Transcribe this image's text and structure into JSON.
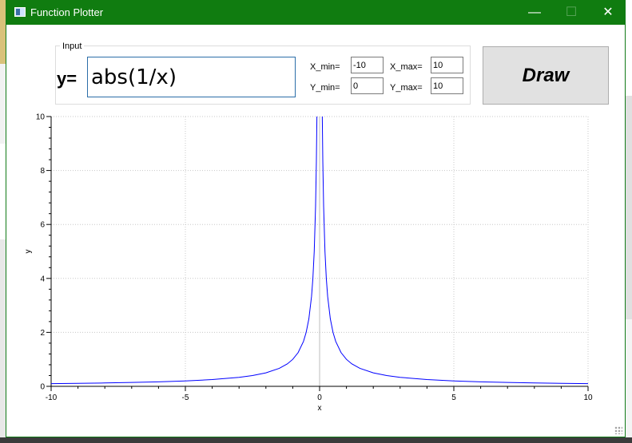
{
  "window": {
    "title": "Function Plotter",
    "controls": {
      "minimize": "—",
      "maximize": "☐",
      "close": "✕"
    }
  },
  "input_group": {
    "title": "Input",
    "y_label": "y=",
    "function": "abs(1/x)",
    "x_min_label": "X_min=",
    "x_min": "-10",
    "x_max_label": "X_max=",
    "x_max": "10",
    "y_min_label": "Y_min=",
    "y_min": "0",
    "y_max_label": "Y_max=",
    "y_max": "10"
  },
  "draw_button": "Draw",
  "chart_data": {
    "type": "line",
    "function": "abs(1/x)",
    "xlabel": "x",
    "ylabel": "y",
    "xlim": [
      -10,
      10
    ],
    "ylim": [
      0,
      10
    ],
    "x_ticks": [
      -10,
      -5,
      0,
      5,
      10
    ],
    "y_ticks": [
      0,
      2,
      4,
      6,
      8,
      10
    ],
    "grid": true,
    "line_color": "#0000ff",
    "series": [
      {
        "x": [
          -10,
          -9,
          -8,
          -7,
          -6,
          -5,
          -4,
          -3,
          -2.5,
          -2,
          -1.5,
          -1.2,
          -1,
          -0.8,
          -0.6,
          -0.5,
          -0.4,
          -0.3,
          -0.25,
          -0.2,
          -0.15,
          -0.12,
          -0.1
        ],
        "y": [
          0.1,
          0.111,
          0.125,
          0.143,
          0.167,
          0.2,
          0.25,
          0.333,
          0.4,
          0.5,
          0.667,
          0.833,
          1,
          1.25,
          1.667,
          2,
          2.5,
          3.333,
          4,
          5,
          6.667,
          8.333,
          10
        ]
      },
      {
        "x": [
          0.1,
          0.12,
          0.15,
          0.2,
          0.25,
          0.3,
          0.4,
          0.5,
          0.6,
          0.8,
          1,
          1.2,
          1.5,
          2,
          2.5,
          3,
          4,
          5,
          6,
          7,
          8,
          9,
          10
        ],
        "y": [
          10,
          8.333,
          6.667,
          5,
          4,
          3.333,
          2.5,
          2,
          1.667,
          1.25,
          1,
          0.833,
          0.667,
          0.5,
          0.4,
          0.333,
          0.25,
          0.2,
          0.167,
          0.143,
          0.125,
          0.111,
          0.1
        ]
      }
    ]
  }
}
